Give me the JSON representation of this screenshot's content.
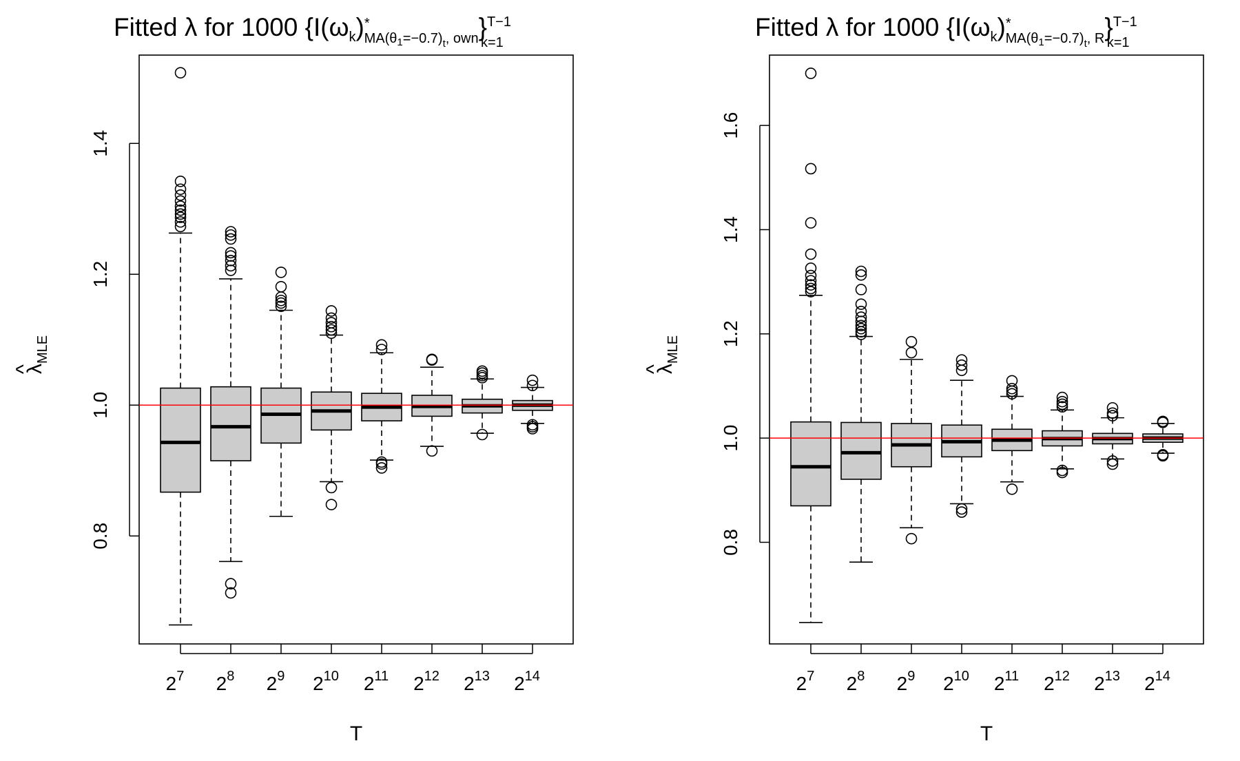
{
  "chart_data": [
    {
      "type": "boxplot",
      "title": {
        "prefix": "Fitted λ for 1000 {I(ω",
        "k": "k",
        "close": ")",
        "star": "*",
        "sub_a": "MA(θ",
        "sub_1": "1",
        "sub_b": "=−0.7)",
        "sub_t": "t",
        "sub_c": ", own",
        "brace": "}",
        "upper": "T−1",
        "lower": "k=1"
      },
      "xlabel": "T",
      "ylabel": {
        "hat": "^",
        "symbol": "λ",
        "sub": "MLE"
      },
      "categories": [
        {
          "base": "2",
          "exp": "7"
        },
        {
          "base": "2",
          "exp": "8"
        },
        {
          "base": "2",
          "exp": "9"
        },
        {
          "base": "2",
          "exp": "10"
        },
        {
          "base": "2",
          "exp": "11"
        },
        {
          "base": "2",
          "exp": "12"
        },
        {
          "base": "2",
          "exp": "13"
        },
        {
          "base": "2",
          "exp": "14"
        }
      ],
      "ylim": [
        0.635,
        1.535
      ],
      "yticks": [
        0.8,
        1.0,
        1.2,
        1.4
      ],
      "ytick_labels": [
        "0.8",
        "1.0",
        "1.2",
        "1.4"
      ],
      "reference_line": 1.0,
      "reference_color": "#ff0000",
      "box_fill": "#cccccc",
      "boxes": [
        {
          "lower_whisker": 0.664,
          "q1": 0.867,
          "median": 0.943,
          "q3": 1.026,
          "upper_whisker": 1.263,
          "outliers": [
            1.273,
            1.28,
            1.287,
            1.292,
            1.298,
            1.304,
            1.312,
            1.321,
            1.33,
            1.342,
            1.508
          ]
        },
        {
          "lower_whisker": 0.761,
          "q1": 0.915,
          "median": 0.967,
          "q3": 1.028,
          "upper_whisker": 1.193,
          "outliers": [
            0.713,
            0.727,
            1.206,
            1.213,
            1.221,
            1.228,
            1.233,
            1.254,
            1.26,
            1.265
          ]
        },
        {
          "lower_whisker": 0.83,
          "q1": 0.942,
          "median": 0.986,
          "q3": 1.026,
          "upper_whisker": 1.145,
          "outliers": [
            1.151,
            1.156,
            1.16,
            1.165,
            1.181,
            1.203
          ]
        },
        {
          "lower_whisker": 0.883,
          "q1": 0.962,
          "median": 0.991,
          "q3": 1.02,
          "upper_whisker": 1.107,
          "outliers": [
            0.848,
            0.874,
            1.11,
            1.115,
            1.12,
            1.126,
            1.133,
            1.144
          ]
        },
        {
          "lower_whisker": 0.916,
          "q1": 0.976,
          "median": 0.997,
          "q3": 1.018,
          "upper_whisker": 1.08,
          "outliers": [
            0.904,
            0.91,
            0.913,
            1.085,
            1.092
          ]
        },
        {
          "lower_whisker": 0.937,
          "q1": 0.983,
          "median": 0.998,
          "q3": 1.015,
          "upper_whisker": 1.058,
          "outliers": [
            0.93,
            1.069,
            1.07
          ]
        },
        {
          "lower_whisker": 0.957,
          "q1": 0.988,
          "median": 0.999,
          "q3": 1.009,
          "upper_whisker": 1.04,
          "outliers": [
            0.955,
            1.042,
            1.045,
            1.049,
            1.052
          ]
        },
        {
          "lower_whisker": 0.972,
          "q1": 0.992,
          "median": 1.0,
          "q3": 1.007,
          "upper_whisker": 1.027,
          "outliers": [
            0.964,
            0.967,
            0.97,
            1.03,
            1.038
          ]
        }
      ]
    },
    {
      "type": "boxplot",
      "title": {
        "prefix": "Fitted λ for 1000 {I(ω",
        "k": "k",
        "close": ")",
        "star": "*",
        "sub_a": "MA(θ",
        "sub_1": "1",
        "sub_b": "=−0.7)",
        "sub_t": "t",
        "sub_c": ", R",
        "brace": "}",
        "upper": "T−1",
        "lower": "k=1"
      },
      "xlabel": "T",
      "ylabel": {
        "hat": "^",
        "symbol": "λ",
        "sub": "MLE"
      },
      "categories": [
        {
          "base": "2",
          "exp": "7"
        },
        {
          "base": "2",
          "exp": "8"
        },
        {
          "base": "2",
          "exp": "9"
        },
        {
          "base": "2",
          "exp": "10"
        },
        {
          "base": "2",
          "exp": "11"
        },
        {
          "base": "2",
          "exp": "12"
        },
        {
          "base": "2",
          "exp": "13"
        },
        {
          "base": "2",
          "exp": "14"
        }
      ],
      "ylim": [
        0.605,
        1.735
      ],
      "yticks": [
        0.8,
        1.0,
        1.2,
        1.4,
        1.6
      ],
      "ytick_labels": [
        "0.8",
        "1.0",
        "1.2",
        "1.4",
        "1.6"
      ],
      "reference_line": 1.0,
      "reference_color": "#ff0000",
      "box_fill": "#cccccc",
      "boxes": [
        {
          "lower_whisker": 0.646,
          "q1": 0.87,
          "median": 0.945,
          "q3": 1.031,
          "upper_whisker": 1.274,
          "outliers": [
            1.281,
            1.287,
            1.294,
            1.302,
            1.312,
            1.326,
            1.353,
            1.413,
            1.517,
            1.7
          ]
        },
        {
          "lower_whisker": 0.762,
          "q1": 0.921,
          "median": 0.972,
          "q3": 1.03,
          "upper_whisker": 1.195,
          "outliers": [
            1.199,
            1.204,
            1.21,
            1.216,
            1.224,
            1.232,
            1.243,
            1.257,
            1.285,
            1.313,
            1.32
          ]
        },
        {
          "lower_whisker": 0.828,
          "q1": 0.945,
          "median": 0.987,
          "q3": 1.028,
          "upper_whisker": 1.151,
          "outliers": [
            0.807,
            1.164,
            1.185
          ]
        },
        {
          "lower_whisker": 0.874,
          "q1": 0.964,
          "median": 0.993,
          "q3": 1.025,
          "upper_whisker": 1.111,
          "outliers": [
            0.858,
            0.864,
            1.13,
            1.14,
            1.15
          ]
        },
        {
          "lower_whisker": 0.916,
          "q1": 0.976,
          "median": 0.996,
          "q3": 1.017,
          "upper_whisker": 1.08,
          "outliers": [
            0.902,
            1.085,
            1.09,
            1.095,
            1.11
          ]
        },
        {
          "lower_whisker": 0.941,
          "q1": 0.985,
          "median": 0.999,
          "q3": 1.014,
          "upper_whisker": 1.054,
          "outliers": [
            0.934,
            0.938,
            1.06,
            1.065,
            1.07,
            1.078
          ]
        },
        {
          "lower_whisker": 0.96,
          "q1": 0.989,
          "median": 0.999,
          "q3": 1.009,
          "upper_whisker": 1.039,
          "outliers": [
            0.95,
            0.956,
            1.043,
            1.048,
            1.058
          ]
        },
        {
          "lower_whisker": 0.971,
          "q1": 0.992,
          "median": 1.0,
          "q3": 1.008,
          "upper_whisker": 1.028,
          "outliers": [
            0.966,
            0.968,
            1.03,
            1.032
          ]
        }
      ]
    }
  ]
}
